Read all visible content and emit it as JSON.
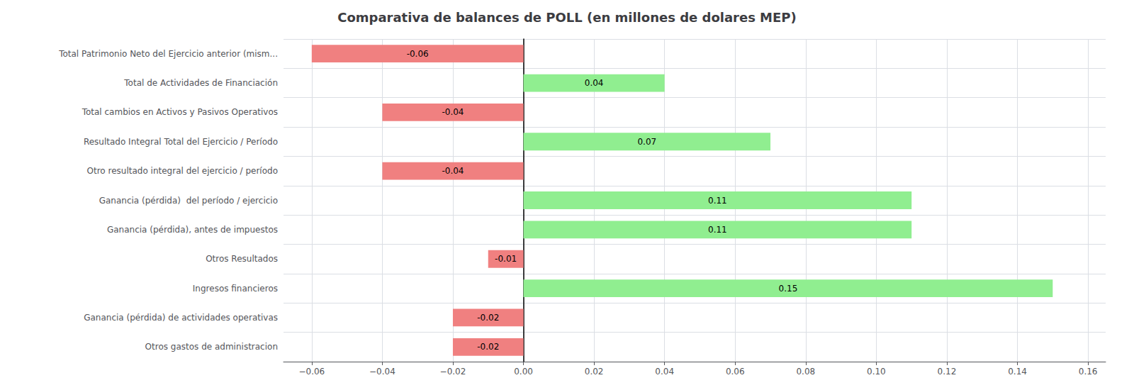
{
  "chart_data": {
    "type": "bar",
    "orientation": "horizontal",
    "title": "Comparativa de balances de POLL (en millones de dolares MEP)",
    "categories": [
      "Total Patrimonio Neto del Ejercicio anterior (mism...",
      "Total de Actividades de Financiación",
      "Total cambios en Activos y Pasivos Operativos",
      "Resultado Integral Total del Ejercicio / Período",
      "Otro resultado integral del ejercicio / período",
      "Ganancia (pérdida)  del período / ejercicio",
      "Ganancia (pérdida), antes de impuestos",
      "Otros Resultados",
      "Ingresos financieros",
      "Ganancia (pérdida) de actividades operativas",
      "Otros gastos de administracion"
    ],
    "values": [
      -0.06,
      0.04,
      -0.04,
      0.07,
      -0.04,
      0.11,
      0.11,
      -0.01,
      0.15,
      -0.02,
      -0.02
    ],
    "colors": [
      "#F08080",
      "#90EE90",
      "#F08080",
      "#90EE90",
      "#F08080",
      "#90EE90",
      "#90EE90",
      "#F08080",
      "#90EE90",
      "#F08080",
      "#F08080"
    ],
    "xlim": [
      -0.068,
      0.165
    ],
    "xticks": [
      {
        "value": -0.06,
        "label": "−0.06"
      },
      {
        "value": -0.04,
        "label": "−0.04"
      },
      {
        "value": -0.02,
        "label": "−0.02"
      },
      {
        "value": 0,
        "label": "0.00"
      },
      0.02,
      0.04,
      0.06,
      0.08,
      {
        "value": 0.1,
        "label": "0.10"
      },
      0.12,
      0.14,
      0.16
    ],
    "data_labels": true,
    "grid": true
  }
}
